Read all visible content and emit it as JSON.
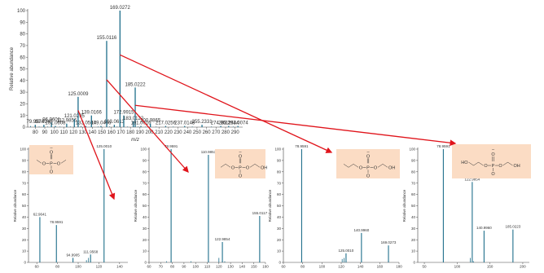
{
  "chart_data": [
    {
      "type": "bar",
      "role": "main-spectrum",
      "xlabel": "m/z",
      "ylabel": "Relative abundance",
      "xlim": [
        72,
        298
      ],
      "ylim": [
        0,
        100
      ],
      "xticks": [
        80,
        90,
        100,
        110,
        120,
        130,
        140,
        150,
        160,
        170,
        180,
        190,
        200,
        210,
        220,
        230,
        240,
        250,
        260,
        270,
        280,
        290
      ],
      "yticks": [
        0,
        10,
        20,
        30,
        40,
        50,
        60,
        70,
        80,
        90,
        100
      ],
      "color": "#1f6f8b",
      "peaks": [
        {
          "x": 79.9574,
          "y": 2,
          "label": "79.9574"
        },
        {
          "x": 89.0245,
          "y": 2,
          "label": "89.0245"
        },
        {
          "x": 96.9601,
          "y": 4,
          "label": "96.9601"
        },
        {
          "x": 101.0608,
          "y": 1,
          "label": "101.0608"
        },
        {
          "x": 112.9856,
          "y": 3,
          "label": "112.9856"
        },
        {
          "x": 121.0295,
          "y": 7,
          "label": "121.0295"
        },
        {
          "x": 125.0009,
          "y": 26,
          "label": "125.0009"
        },
        {
          "x": 133.0507,
          "y": 1,
          "label": "133.0507"
        },
        {
          "x": 139.0166,
          "y": 10,
          "label": "139.0166"
        },
        {
          "x": 149.0456,
          "y": 1,
          "label": "149.0456"
        },
        {
          "x": 155.0116,
          "y": 74,
          "label": "155.0116"
        },
        {
          "x": 163.0613,
          "y": 2,
          "label": "163.0613"
        },
        {
          "x": 169.0272,
          "y": 100,
          "label": "169.0272"
        },
        {
          "x": 172.9915,
          "y": 10,
          "label": "172.9915"
        },
        {
          "x": 183.0122,
          "y": 5,
          "label": "183.0122"
        },
        {
          "x": 185.0222,
          "y": 34,
          "label": "185.0222"
        },
        {
          "x": 191.0016,
          "y": 1,
          "label": "191.0016"
        },
        {
          "x": 200.9865,
          "y": 3,
          "label": "200.9865"
        },
        {
          "x": 217.0256,
          "y": 1,
          "label": "217.0256"
        },
        {
          "x": 237.0148,
          "y": 1,
          "label": "237.0148"
        },
        {
          "x": 255.2331,
          "y": 2,
          "label": "255.2331"
        },
        {
          "x": 274.9611,
          "y": 1,
          "label": "274.9611"
        },
        {
          "x": 283.2644,
          "y": 1,
          "label": "283.2644"
        },
        {
          "x": 293.0074,
          "y": 1,
          "label": "293.0074"
        }
      ],
      "minor_peaks": [
        [
          75,
          1
        ],
        [
          84,
          0.5
        ],
        [
          93,
          0.5
        ],
        [
          106,
          0.5
        ],
        [
          117,
          0.5
        ],
        [
          128,
          1
        ],
        [
          146,
          0.5
        ],
        [
          158,
          0.5
        ],
        [
          166,
          0.5
        ],
        [
          177,
          0.5
        ],
        [
          188,
          0.5
        ],
        [
          196,
          0.5
        ],
        [
          207,
          0.5
        ],
        [
          225,
          0.5
        ],
        [
          245,
          0.5
        ],
        [
          265,
          0.5
        ],
        [
          288,
          0.5
        ]
      ]
    },
    {
      "type": "bar",
      "role": "fragment-spectrum-125",
      "xlabel": "",
      "ylabel": "Relative abundance",
      "xlim": [
        52,
        148
      ],
      "ylim": [
        0,
        100
      ],
      "xticks": [
        60,
        80,
        100,
        120,
        140
      ],
      "yticks": [
        0,
        10,
        20,
        30,
        40,
        50,
        60,
        70,
        80,
        90,
        100
      ],
      "color": "#1f6f8b",
      "peaks": [
        {
          "x": 62.9641,
          "y": 40,
          "label": "62.9641"
        },
        {
          "x": 78.9591,
          "y": 33,
          "label": "78.9591"
        },
        {
          "x": 94.9905,
          "y": 4,
          "label": "94.9905"
        },
        {
          "x": 111.9568,
          "y": 7,
          "label": "111.9568"
        },
        {
          "x": 125.001,
          "y": 100,
          "label": "125.0010"
        }
      ],
      "minor_peaks": [
        [
          108,
          2
        ],
        [
          110,
          4
        ]
      ]
    },
    {
      "type": "bar",
      "role": "fragment-spectrum-155",
      "xlabel": "",
      "ylabel": "Relative abundance",
      "xlim": [
        60,
        160
      ],
      "ylim": [
        0,
        100
      ],
      "xticks": [
        60,
        70,
        80,
        90,
        100,
        110,
        120,
        130,
        140,
        150,
        160
      ],
      "yticks": [
        0,
        10,
        20,
        30,
        40,
        50,
        60,
        70,
        80,
        90,
        100
      ],
      "color": "#1f6f8b",
      "peaks": [
        {
          "x": 78.9591,
          "y": 100,
          "label": "78.9591"
        },
        {
          "x": 110.9853,
          "y": 95,
          "label": "110.9853"
        },
        {
          "x": 122.9854,
          "y": 18,
          "label": "122.9854"
        },
        {
          "x": 155.0117,
          "y": 41,
          "label": "155.0117"
        }
      ],
      "minor_peaks": [
        [
          75,
          1
        ],
        [
          96,
          1
        ],
        [
          120,
          4
        ],
        [
          125,
          1
        ]
      ]
    },
    {
      "type": "bar",
      "role": "fragment-spectrum-169",
      "xlabel": "",
      "ylabel": "Relative abundance",
      "xlim": [
        60,
        180
      ],
      "ylim": [
        0,
        100
      ],
      "xticks": [
        60,
        80,
        100,
        120,
        140,
        160,
        180
      ],
      "yticks": [
        0,
        10,
        20,
        30,
        40,
        50,
        60,
        70,
        80,
        90,
        100
      ],
      "color": "#1f6f8b",
      "peaks": [
        {
          "x": 78.9591,
          "y": 100,
          "label": "78.9591"
        },
        {
          "x": 125.001,
          "y": 8,
          "label": "125.0010"
        },
        {
          "x": 140.996,
          "y": 26,
          "label": "140.9960"
        },
        {
          "x": 169.0273,
          "y": 15,
          "label": "169.0273"
        }
      ],
      "minor_peaks": [
        [
          121,
          3
        ],
        [
          123,
          4
        ]
      ]
    },
    {
      "type": "bar",
      "role": "fragment-spectrum-185",
      "xlabel": "",
      "ylabel": "Relative abundance",
      "xlim": [
        40,
        210
      ],
      "ylim": [
        0,
        100
      ],
      "xticks": [
        50,
        100,
        150,
        200
      ],
      "yticks": [
        0,
        10,
        20,
        30,
        40,
        50,
        60,
        70,
        80,
        90,
        100
      ],
      "color": "#1f6f8b",
      "peaks": [
        {
          "x": 78.9591,
          "y": 100,
          "label": "78.9591"
        },
        {
          "x": 122.9854,
          "y": 71,
          "label": "122.9854"
        },
        {
          "x": 140.996,
          "y": 28,
          "label": "140.9960"
        },
        {
          "x": 185.0223,
          "y": 29,
          "label": "185.0223"
        }
      ],
      "minor_peaks": [
        [
          120,
          4
        ],
        [
          125,
          1
        ]
      ]
    }
  ],
  "structures": [
    {
      "name": "dimethyl-phosphate-anion",
      "charge": "–",
      "oxygen": "O",
      "phosphorus": "P"
    },
    {
      "name": "ethyl-hydroxyethyl-phosphate-anion",
      "charge": "–",
      "oxygen": "O",
      "phosphorus": "P",
      "hydroxyl": "OH"
    },
    {
      "name": "propyl-hydroxyethyl-phosphate-anion",
      "charge": "–",
      "oxygen": "O",
      "phosphorus": "P",
      "hydroxyl": "OH"
    },
    {
      "name": "bis-hydroxyethyl-phosphate-anion",
      "charge": "–",
      "oxygen": "O",
      "phosphorus": "P",
      "hydroxyl_left": "HO",
      "hydroxyl_right": "OH"
    }
  ],
  "arrows": [
    {
      "from": "main-spectrum-peak-125",
      "to": "fragment-spectrum-125"
    },
    {
      "from": "main-spectrum-peak-155",
      "to": "fragment-spectrum-155"
    },
    {
      "from": "main-spectrum-peak-169",
      "to": "fragment-spectrum-169"
    },
    {
      "from": "main-spectrum-peak-185",
      "to": "fragment-spectrum-185"
    }
  ],
  "colors": {
    "peak": "#1f6f8b",
    "arrow": "#e0141b",
    "structure_box": "#fbdcc4",
    "axis": "#444444"
  }
}
